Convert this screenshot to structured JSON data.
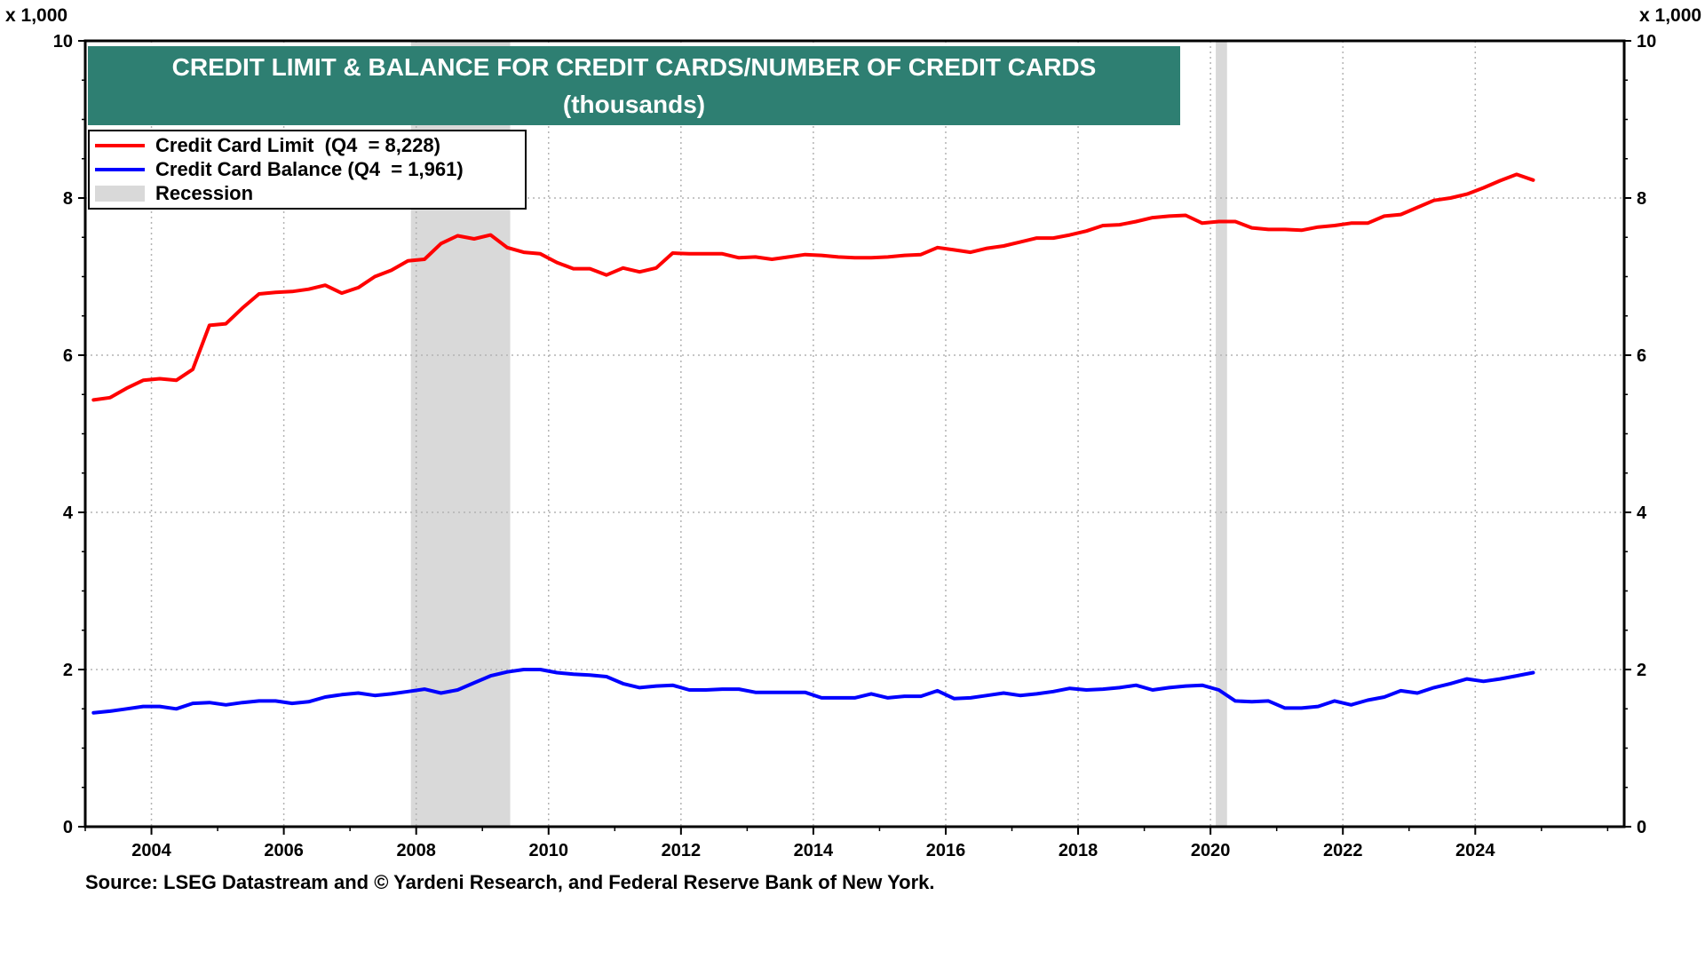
{
  "chart_data": {
    "type": "line",
    "title": "CREDIT LIMIT & BALANCE FOR CREDIT CARDS/NUMBER OF CREDIT CARDS",
    "subtitle": "(thousands)",
    "y_unit_left": "x 1,000",
    "y_unit_right": "x 1,000",
    "ylim": [
      0,
      10
    ],
    "yticks": [
      "0",
      "2",
      "4",
      "6",
      "8",
      "10"
    ],
    "xlim": [
      2003.0,
      2026.25
    ],
    "xticks": [
      "2004",
      "2006",
      "2008",
      "2010",
      "2012",
      "2014",
      "2016",
      "2018",
      "2020",
      "2022",
      "2024"
    ],
    "grid": true,
    "legend_position": "top-left",
    "legend": {
      "limit": "Credit Card Limit  (Q4  = 8,228)",
      "balance": "Credit Card Balance (Q4  = 1,961)",
      "recession": "Recession"
    },
    "recessions": [
      [
        2007.92,
        2009.42
      ],
      [
        2020.08,
        2020.25
      ]
    ],
    "x": [
      2003.125,
      2003.375,
      2003.625,
      2003.875,
      2004.125,
      2004.375,
      2004.625,
      2004.875,
      2005.125,
      2005.375,
      2005.625,
      2005.875,
      2006.125,
      2006.375,
      2006.625,
      2006.875,
      2007.125,
      2007.375,
      2007.625,
      2007.875,
      2008.125,
      2008.375,
      2008.625,
      2008.875,
      2009.125,
      2009.375,
      2009.625,
      2009.875,
      2010.125,
      2010.375,
      2010.625,
      2010.875,
      2011.125,
      2011.375,
      2011.625,
      2011.875,
      2012.125,
      2012.375,
      2012.625,
      2012.875,
      2013.125,
      2013.375,
      2013.625,
      2013.875,
      2014.125,
      2014.375,
      2014.625,
      2014.875,
      2015.125,
      2015.375,
      2015.625,
      2015.875,
      2016.125,
      2016.375,
      2016.625,
      2016.875,
      2017.125,
      2017.375,
      2017.625,
      2017.875,
      2018.125,
      2018.375,
      2018.625,
      2018.875,
      2019.125,
      2019.375,
      2019.625,
      2019.875,
      2020.125,
      2020.375,
      2020.625,
      2020.875,
      2021.125,
      2021.375,
      2021.625,
      2021.875,
      2022.125,
      2022.375,
      2022.625,
      2022.875,
      2023.125,
      2023.375,
      2023.625,
      2023.875,
      2024.125,
      2024.375,
      2024.625,
      2024.875
    ],
    "series": [
      {
        "name": "Credit Card Limit",
        "color": "#ff0000",
        "values": [
          5.43,
          5.46,
          5.58,
          5.68,
          5.7,
          5.68,
          5.82,
          6.38,
          6.4,
          6.6,
          6.78,
          6.8,
          6.81,
          6.84,
          6.89,
          6.79,
          6.86,
          7.0,
          7.08,
          7.2,
          7.22,
          7.42,
          7.52,
          7.48,
          7.53,
          7.37,
          7.31,
          7.29,
          7.18,
          7.1,
          7.1,
          7.02,
          7.11,
          7.06,
          7.11,
          7.3,
          7.29,
          7.29,
          7.29,
          7.24,
          7.25,
          7.22,
          7.25,
          7.28,
          7.27,
          7.25,
          7.24,
          7.24,
          7.25,
          7.27,
          7.28,
          7.37,
          7.34,
          7.31,
          7.36,
          7.39,
          7.44,
          7.49,
          7.49,
          7.53,
          7.58,
          7.65,
          7.66,
          7.7,
          7.75,
          7.77,
          7.78,
          7.68,
          7.7,
          7.7,
          7.62,
          7.6,
          7.6,
          7.59,
          7.63,
          7.65,
          7.68,
          7.68,
          7.77,
          7.79,
          7.88,
          7.97,
          8.0,
          8.05,
          8.13,
          8.22,
          8.3,
          8.228
        ]
      },
      {
        "name": "Credit Card Balance",
        "color": "#0000ff",
        "values": [
          1.45,
          1.47,
          1.5,
          1.53,
          1.53,
          1.5,
          1.57,
          1.58,
          1.55,
          1.58,
          1.6,
          1.6,
          1.57,
          1.59,
          1.65,
          1.68,
          1.7,
          1.67,
          1.69,
          1.72,
          1.75,
          1.7,
          1.74,
          1.83,
          1.92,
          1.97,
          2.0,
          2.0,
          1.96,
          1.94,
          1.93,
          1.91,
          1.82,
          1.77,
          1.79,
          1.8,
          1.74,
          1.74,
          1.75,
          1.75,
          1.71,
          1.71,
          1.71,
          1.71,
          1.64,
          1.64,
          1.64,
          1.69,
          1.64,
          1.66,
          1.66,
          1.73,
          1.63,
          1.64,
          1.67,
          1.7,
          1.67,
          1.69,
          1.72,
          1.76,
          1.74,
          1.75,
          1.77,
          1.8,
          1.74,
          1.77,
          1.79,
          1.8,
          1.74,
          1.6,
          1.59,
          1.6,
          1.51,
          1.51,
          1.53,
          1.6,
          1.55,
          1.61,
          1.65,
          1.73,
          1.7,
          1.77,
          1.82,
          1.88,
          1.85,
          1.88,
          1.92,
          1.961
        ]
      }
    ]
  },
  "source": "Source: LSEG Datastream and © Yardeni Research, and Federal Reserve Bank of New York.",
  "colors": {
    "title_bg": "#2e7f72",
    "recession": "#d9d9d9",
    "limit": "#ff0000",
    "balance": "#0000ff"
  }
}
